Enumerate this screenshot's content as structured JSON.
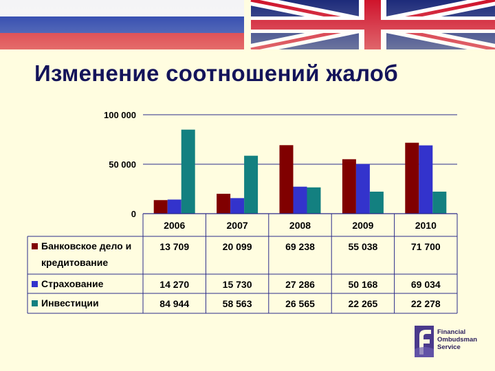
{
  "slide": {
    "title": "Изменение соотношений жалоб"
  },
  "logo": {
    "line1": "Financial",
    "line2": "Ombudsman",
    "line3": "Service"
  },
  "colors": {
    "background": "#fffde0",
    "title": "#14145a",
    "banking": "#800000",
    "insurance": "#3333cc",
    "investments": "#138080"
  },
  "chart_data": {
    "type": "bar",
    "title": "",
    "xlabel": "",
    "ylabel": "",
    "categories": [
      "2006",
      "2007",
      "2008",
      "2009",
      "2010"
    ],
    "ylim": [
      0,
      100000
    ],
    "yticks": [
      0,
      50000,
      100000
    ],
    "ytick_labels": [
      "0",
      "50 000",
      "100 000"
    ],
    "grid": true,
    "legend": "data-table-left",
    "series": [
      {
        "name_lines": [
          "Банковское дело и",
          "кредитование"
        ],
        "color": "#800000",
        "values": [
          13709,
          20099,
          69238,
          55038,
          71700
        ],
        "labels": [
          "13 709",
          "20 099",
          "69 238",
          "55 038",
          "71 700"
        ]
      },
      {
        "name_lines": [
          "Страхование"
        ],
        "color": "#3333cc",
        "values": [
          14270,
          15730,
          27286,
          50168,
          69034
        ],
        "labels": [
          "14 270",
          "15 730",
          "27 286",
          "50 168",
          "69 034"
        ]
      },
      {
        "name_lines": [
          "Инвестиции"
        ],
        "color": "#138080",
        "values": [
          84944,
          58563,
          26565,
          22265,
          22278
        ],
        "labels": [
          "84 944",
          "58 563",
          "26 565",
          "22 265",
          "22 278"
        ]
      }
    ]
  }
}
